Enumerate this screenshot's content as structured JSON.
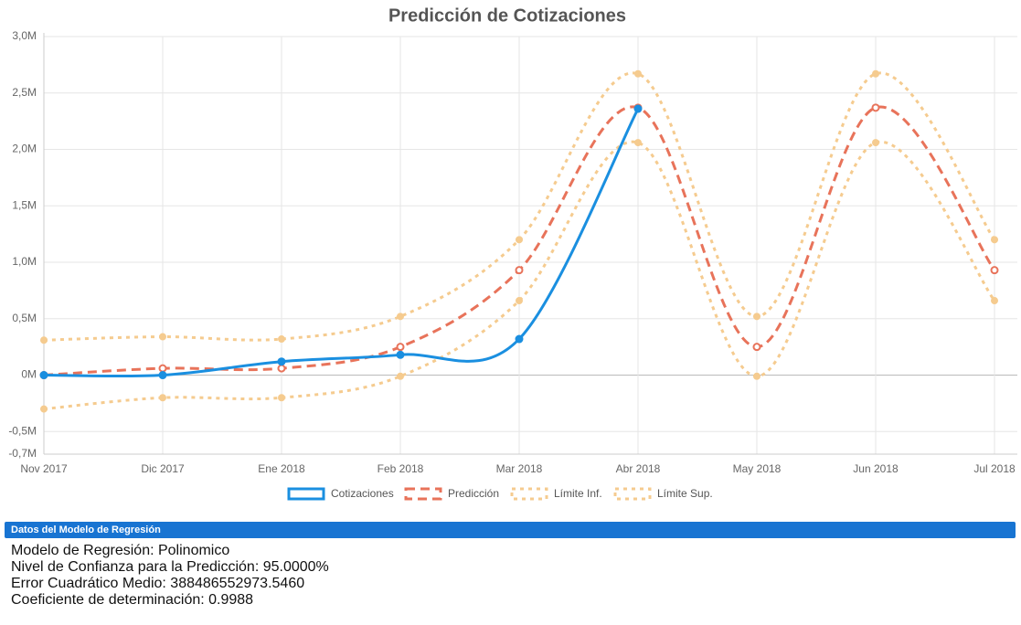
{
  "chart_data": {
    "type": "line",
    "title": "Predicción de Cotizaciones",
    "categories": [
      "Nov 2017",
      "Dic 2017",
      "Ene 2018",
      "Feb 2018",
      "Mar 2018",
      "Abr 2018",
      "May 2018",
      "Jun 2018",
      "Jul 2018"
    ],
    "series": [
      {
        "name": "Cotizaciones",
        "color": "#1a8fe0",
        "values": [
          0,
          0,
          120000,
          180000,
          320000,
          2360000,
          null,
          null,
          null
        ]
      },
      {
        "name": "Predicción",
        "color": "#e8735a",
        "values": [
          0,
          60000,
          60000,
          250000,
          930000,
          2370000,
          250000,
          2370000,
          930000
        ]
      },
      {
        "name": "Límite Inf.",
        "color": "#f5cb8f",
        "values": [
          -300000,
          -200000,
          -200000,
          -10000,
          660000,
          2060000,
          -10000,
          2060000,
          660000
        ]
      },
      {
        "name": "Límite Sup.",
        "color": "#f5cb8f",
        "values": [
          310000,
          340000,
          320000,
          520000,
          1200000,
          2670000,
          520000,
          2670000,
          1200000
        ]
      }
    ],
    "ylim": [
      -700000,
      3000000
    ],
    "yticks": [
      {
        "value": -700000,
        "label": "-0,7M"
      },
      {
        "value": -500000,
        "label": "-0,5M"
      },
      {
        "value": 0,
        "label": "0M"
      },
      {
        "value": 500000,
        "label": "0,5M"
      },
      {
        "value": 1000000,
        "label": "1,0M"
      },
      {
        "value": 1500000,
        "label": "1,5M"
      },
      {
        "value": 2000000,
        "label": "2,0M"
      },
      {
        "value": 2500000,
        "label": "2,5M"
      },
      {
        "value": 3000000,
        "label": "3,0M"
      }
    ],
    "grid": true
  },
  "panel": {
    "title": "Datos del Modelo de Regresión",
    "lines": [
      "Modelo de Regresión: Polinomico",
      "Nivel de Confianza para la Predicción: 95.0000%",
      "Error Cuadrático Medio: 388486552973.5460",
      "Coeficiente de determinación: 0.9988"
    ]
  }
}
